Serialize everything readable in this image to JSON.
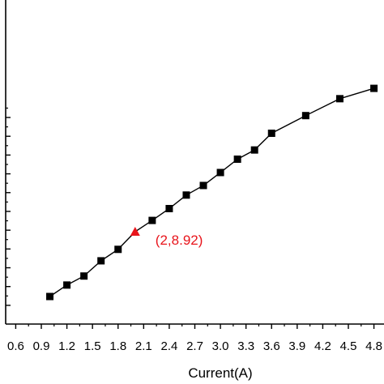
{
  "chart_data": {
    "type": "line",
    "xlabel": "Current(A)",
    "ylabel": "",
    "title": "",
    "xlim": [
      0.6,
      4.85
    ],
    "ylim": [
      4.5,
      15.85
    ],
    "x_tick_values": [
      0.6,
      0.9,
      1.2,
      1.5,
      1.8,
      2.1,
      2.4,
      2.7,
      3.0,
      3.3,
      3.6,
      3.9,
      4.2,
      4.5,
      4.8
    ],
    "x_tick_labels": [
      "0.6",
      "0.9",
      "1.2",
      "1.5",
      "1.8",
      "2.1",
      "2.4",
      "2.7",
      "3.0",
      "3.3",
      "3.6",
      "3.9",
      "4.2",
      "4.5",
      "4.8"
    ],
    "y_tick_values": [
      5,
      6,
      7,
      8,
      9,
      10,
      11,
      12,
      13,
      14,
      15
    ],
    "grid": false,
    "series": [
      {
        "marker": "square",
        "color": "#000000",
        "x": [
          1.0,
          1.2,
          1.4,
          1.6,
          1.8,
          2.0,
          2.2,
          2.4,
          2.6,
          2.8,
          3.0,
          3.2,
          3.4,
          3.6,
          4.0,
          4.4,
          4.8
        ],
        "y": [
          5.47,
          6.08,
          6.56,
          7.37,
          7.98,
          8.92,
          9.52,
          10.15,
          10.87,
          11.38,
          12.07,
          12.78,
          13.27,
          14.16,
          15.1,
          16.0,
          16.55
        ]
      }
    ],
    "highlight": {
      "x": 2.0,
      "y": 8.92,
      "label": "(2,8.92)",
      "marker": "triangle",
      "color": "#e8141b"
    }
  }
}
